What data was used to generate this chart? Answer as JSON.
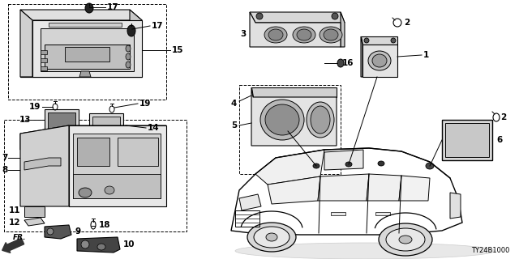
{
  "diagram_code": "TY24B1000",
  "bg": "#ffffff",
  "lc": "#000000",
  "gray1": "#888888",
  "gray2": "#aaaaaa",
  "gray3": "#cccccc",
  "dark": "#333333",
  "fs": 7.5,
  "fs_small": 6.0
}
